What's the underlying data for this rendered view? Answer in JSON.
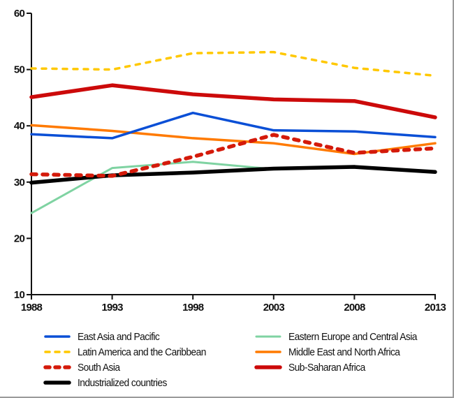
{
  "chart_data": {
    "type": "line",
    "title": "",
    "xlabel": "",
    "ylabel": "",
    "x": [
      1988,
      1993,
      1998,
      2003,
      2008,
      2013
    ],
    "x_tick_labels": [
      "1988",
      "1993",
      "1998",
      "2003",
      "2008",
      "2013"
    ],
    "ylim": [
      10,
      60
    ],
    "y_ticks": [
      10,
      20,
      30,
      40,
      50,
      60
    ],
    "y_tick_labels": [
      "10",
      "20",
      "30",
      "40",
      "50",
      "60"
    ],
    "grid": false,
    "legend_position": "bottom",
    "series": [
      {
        "name": "East Asia and Pacific",
        "color": "#0a4fd6",
        "style": "solid",
        "weight": "normal",
        "values": [
          38.5,
          37.8,
          42.3,
          39.2,
          39.0,
          38.0
        ]
      },
      {
        "name": "Eastern Europe and Central Asia",
        "color": "#7fd3a2",
        "style": "solid",
        "weight": "thin",
        "values": [
          24.5,
          32.5,
          33.6,
          32.3,
          32.6,
          31.7
        ]
      },
      {
        "name": "Latin America and the Caribbean",
        "color": "#ffc800",
        "style": "dashed",
        "weight": "normal",
        "values": [
          50.2,
          50.0,
          52.9,
          53.1,
          50.3,
          48.9
        ]
      },
      {
        "name": "Middle East and North Africa",
        "color": "#ff7a00",
        "style": "solid",
        "weight": "normal",
        "values": [
          40.1,
          39.1,
          37.8,
          36.9,
          35.0,
          36.9
        ]
      },
      {
        "name": "South Asia",
        "color": "#d41a0a",
        "style": "dashed",
        "weight": "thick",
        "values": [
          31.4,
          31.1,
          34.5,
          38.4,
          35.2,
          36.0
        ]
      },
      {
        "name": "Sub-Saharan Africa",
        "color": "#cc0a0a",
        "style": "solid",
        "weight": "thick",
        "values": [
          45.1,
          47.2,
          45.6,
          44.7,
          44.4,
          41.5
        ]
      },
      {
        "name": "Industrialized countries",
        "color": "#000000",
        "style": "solid",
        "weight": "thick",
        "values": [
          29.9,
          31.2,
          31.7,
          32.4,
          32.7,
          31.8
        ]
      }
    ]
  },
  "legend": {
    "items": [
      {
        "label": "East Asia and Pacific",
        "series": 0
      },
      {
        "label": "Latin America and the Caribbean",
        "series": 2
      },
      {
        "label": "South Asia",
        "series": 4
      },
      {
        "label": "Industrialized countries",
        "series": 6
      },
      {
        "label": "Eastern Europe and Central Asia",
        "series": 1
      },
      {
        "label": "Middle East and North Africa",
        "series": 3
      },
      {
        "label": "Sub-Saharan Africa",
        "series": 5
      }
    ]
  }
}
